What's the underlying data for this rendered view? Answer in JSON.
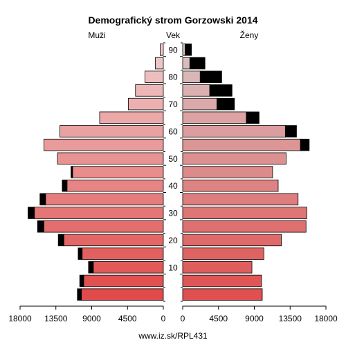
{
  "chart_data": {
    "type": "bar",
    "subtype": "population-pyramid",
    "title": "Demografický strom Gorzowski 2014",
    "left_label": "Muži",
    "center_label": "Vek",
    "right_label": "Ženy",
    "source": "www.iz.sk/RPL431",
    "age_ticks": [
      "10",
      "20",
      "30",
      "40",
      "50",
      "60",
      "70",
      "80",
      "90"
    ],
    "x_ticks_left": [
      "18000",
      "13500",
      "9000",
      "4500",
      "0"
    ],
    "x_ticks_right": [
      "0",
      "4500",
      "9000",
      "13500",
      "18000"
    ],
    "xlim": [
      0,
      18000
    ],
    "age_groups": [
      "0-4",
      "5-9",
      "10-14",
      "15-19",
      "20-24",
      "25-29",
      "30-34",
      "35-39",
      "40-44",
      "45-49",
      "50-54",
      "55-59",
      "60-64",
      "65-69",
      "70-74",
      "75-79",
      "80-84",
      "85-89",
      "90+"
    ],
    "series": [
      {
        "name": "Muži",
        "values": [
          10300,
          10000,
          8800,
          10200,
          12500,
          15000,
          16200,
          14800,
          12100,
          11400,
          13300,
          15000,
          13000,
          8000,
          4400,
          3500,
          2300,
          1000,
          400
        ]
      },
      {
        "name": "Muži surplus",
        "values": [
          500,
          500,
          600,
          500,
          700,
          800,
          800,
          700,
          600,
          200,
          0,
          0,
          0,
          0,
          0,
          0,
          0,
          0,
          0
        ]
      },
      {
        "name": "Ženy",
        "values": [
          10000,
          9900,
          8700,
          10200,
          12400,
          15500,
          15600,
          14500,
          12000,
          11300,
          13000,
          14800,
          12900,
          8000,
          4300,
          3400,
          2200,
          900,
          300
        ]
      },
      {
        "name": "Ženy surplus",
        "values": [
          0,
          0,
          0,
          0,
          0,
          0,
          0,
          0,
          0,
          0,
          0,
          1100,
          1400,
          1600,
          2200,
          2800,
          2700,
          1900,
          800
        ]
      }
    ],
    "colors": {
      "male_base": "#e04a4a",
      "male_top": "#efcdcd",
      "female_base": "#e05050",
      "female_top": "#d9c3c3",
      "surplus": "#000000"
    }
  }
}
